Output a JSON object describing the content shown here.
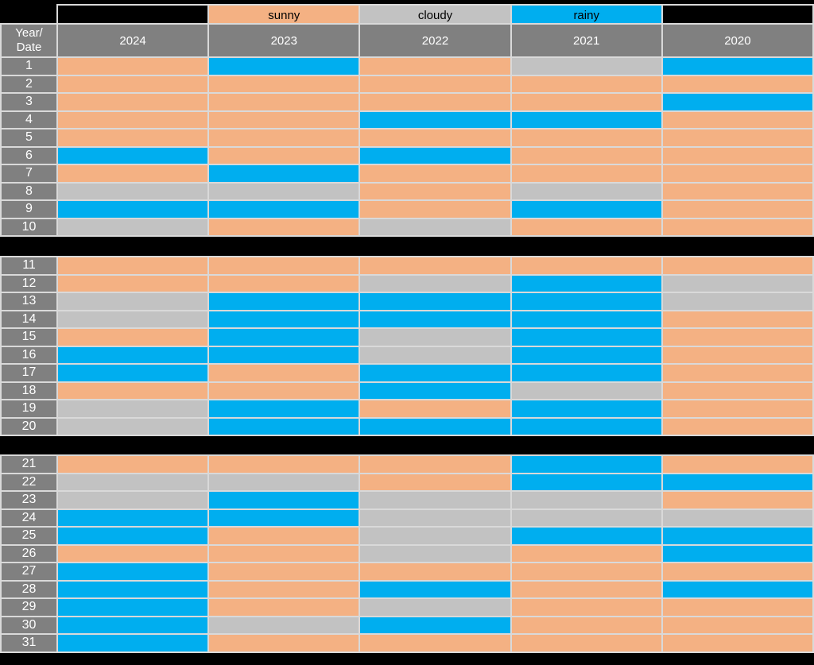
{
  "page": {
    "background": "#000000"
  },
  "colors": {
    "sunny": "#F4B183",
    "cloudy": "#C2C2C2",
    "rainy": "#00AEEF",
    "header_bg": "#808080",
    "row_label_bg": "#808080",
    "grid_line": "#D9D9D9",
    "header_text": "#FFFFFF",
    "legend_text": "#000000"
  },
  "header": {
    "corner_line1": "Year/",
    "corner_line2": "Date"
  },
  "chart_data": {
    "type": "heatmap",
    "legend_labels": [
      "sunny",
      "cloudy",
      "rainy"
    ],
    "columns": [
      "2024",
      "2023",
      "2022",
      "2021",
      "2020"
    ],
    "rows": [
      1,
      2,
      3,
      4,
      5,
      6,
      7,
      8,
      9,
      10,
      11,
      12,
      13,
      14,
      15,
      16,
      17,
      18,
      19,
      20,
      21,
      22,
      23,
      24,
      25,
      26,
      27,
      28,
      29,
      30,
      31
    ],
    "row_groups": [
      [
        1,
        10
      ],
      [
        11,
        20
      ],
      [
        21,
        31
      ]
    ],
    "values": [
      [
        "sunny",
        "rainy",
        "sunny",
        "cloudy",
        "rainy"
      ],
      [
        "sunny",
        "sunny",
        "sunny",
        "sunny",
        "sunny"
      ],
      [
        "sunny",
        "sunny",
        "sunny",
        "sunny",
        "rainy"
      ],
      [
        "sunny",
        "sunny",
        "rainy",
        "rainy",
        "sunny"
      ],
      [
        "sunny",
        "sunny",
        "sunny",
        "sunny",
        "sunny"
      ],
      [
        "rainy",
        "sunny",
        "rainy",
        "sunny",
        "sunny"
      ],
      [
        "sunny",
        "rainy",
        "sunny",
        "sunny",
        "sunny"
      ],
      [
        "cloudy",
        "cloudy",
        "sunny",
        "cloudy",
        "sunny"
      ],
      [
        "rainy",
        "rainy",
        "sunny",
        "rainy",
        "sunny"
      ],
      [
        "cloudy",
        "sunny",
        "cloudy",
        "sunny",
        "sunny"
      ],
      [
        "sunny",
        "sunny",
        "sunny",
        "sunny",
        "sunny"
      ],
      [
        "sunny",
        "sunny",
        "cloudy",
        "rainy",
        "cloudy"
      ],
      [
        "cloudy",
        "rainy",
        "rainy",
        "rainy",
        "cloudy"
      ],
      [
        "cloudy",
        "rainy",
        "rainy",
        "rainy",
        "sunny"
      ],
      [
        "sunny",
        "rainy",
        "cloudy",
        "rainy",
        "sunny"
      ],
      [
        "rainy",
        "rainy",
        "cloudy",
        "rainy",
        "sunny"
      ],
      [
        "rainy",
        "sunny",
        "rainy",
        "rainy",
        "sunny"
      ],
      [
        "sunny",
        "sunny",
        "rainy",
        "cloudy",
        "sunny"
      ],
      [
        "cloudy",
        "rainy",
        "sunny",
        "rainy",
        "sunny"
      ],
      [
        "cloudy",
        "rainy",
        "rainy",
        "rainy",
        "sunny"
      ],
      [
        "sunny",
        "sunny",
        "sunny",
        "rainy",
        "sunny"
      ],
      [
        "cloudy",
        "cloudy",
        "sunny",
        "rainy",
        "rainy"
      ],
      [
        "cloudy",
        "rainy",
        "cloudy",
        "cloudy",
        "sunny"
      ],
      [
        "rainy",
        "rainy",
        "cloudy",
        "cloudy",
        "cloudy"
      ],
      [
        "rainy",
        "sunny",
        "cloudy",
        "rainy",
        "rainy"
      ],
      [
        "sunny",
        "sunny",
        "cloudy",
        "sunny",
        "rainy"
      ],
      [
        "rainy",
        "sunny",
        "sunny",
        "sunny",
        "sunny"
      ],
      [
        "rainy",
        "sunny",
        "rainy",
        "sunny",
        "rainy"
      ],
      [
        "rainy",
        "sunny",
        "cloudy",
        "sunny",
        "sunny"
      ],
      [
        "rainy",
        "cloudy",
        "rainy",
        "sunny",
        "sunny"
      ],
      [
        "rainy",
        "sunny",
        "sunny",
        "sunny",
        "sunny"
      ]
    ]
  }
}
